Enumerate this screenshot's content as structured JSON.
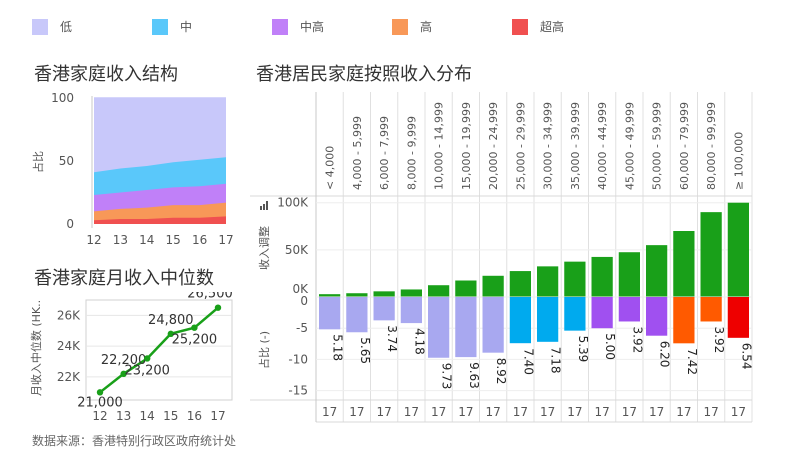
{
  "legend": {
    "items": [
      {
        "label": "低",
        "color": "#c8c8fa"
      },
      {
        "label": "中",
        "color": "#5ac8fa"
      },
      {
        "label": "中高",
        "color": "#c080f8"
      },
      {
        "label": "高",
        "color": "#f89858"
      },
      {
        "label": "超高",
        "color": "#f05050"
      }
    ]
  },
  "source_note": "数据来源：香港特别行政区政府统计处",
  "chart_data": [
    {
      "type": "area",
      "title": "香港家庭收入结构",
      "ylabel": "占比",
      "x": [
        "12",
        "13",
        "14",
        "15",
        "16",
        "17"
      ],
      "yticks": [
        "0",
        "50",
        "100"
      ],
      "ylim": [
        0,
        100
      ],
      "series": [
        {
          "name": "超高",
          "values": [
            3,
            4,
            4,
            5,
            5,
            6
          ]
        },
        {
          "name": "高",
          "values": [
            7,
            8,
            9,
            10,
            10,
            11
          ]
        },
        {
          "name": "中高",
          "values": [
            13,
            13,
            14,
            14,
            15,
            15
          ]
        },
        {
          "name": "中",
          "values": [
            18,
            19,
            19,
            20,
            21,
            21
          ]
        },
        {
          "name": "低",
          "values": [
            59,
            56,
            54,
            51,
            49,
            47
          ]
        }
      ]
    },
    {
      "type": "line",
      "title": "香港家庭月收入中位数",
      "ylabel": "月收入中位数 (HK..",
      "x": [
        "12",
        "13",
        "14",
        "15",
        "16",
        "17"
      ],
      "values": [
        21000,
        22200,
        23200,
        24800,
        25200,
        26500
      ],
      "data_labels": [
        "21,000",
        "22,200",
        "23,200",
        "24,800",
        "25,200",
        "26,500"
      ],
      "yticks": [
        {
          "value": 22000,
          "label": "22K"
        },
        {
          "value": 24000,
          "label": "24K"
        },
        {
          "value": 26000,
          "label": "26K"
        }
      ],
      "ylim": [
        20500,
        27000
      ],
      "color": "#19a019"
    },
    {
      "type": "bar",
      "title": "香港居民家庭按照收入分布",
      "categories": [
        "< 4,000",
        "4,000 - 5,999",
        "6,000 - 7,999",
        "8,000 - 9,999",
        "10,000 - 14,999",
        "15,000 - 19,999",
        "20,000 - 24,999",
        "25,000 - 29,999",
        "30,000 - 34,999",
        "35,000 - 39,999",
        "40,000 - 44,999",
        "45,000 - 49,999",
        "50,000 - 59,999",
        "60,000 - 79,999",
        "80,000 - 99,999",
        "≥ 100,000"
      ],
      "upper": {
        "ylabel": "收入调整",
        "yticks": [
          {
            "value": 0,
            "label": "0K"
          },
          {
            "value": 50000,
            "label": "50K"
          },
          {
            "value": 100000,
            "label": "100K"
          }
        ],
        "ylim": [
          0,
          105000
        ],
        "values": [
          3000,
          4000,
          6000,
          8000,
          12500,
          17500,
          22500,
          27500,
          32500,
          37500,
          42500,
          47500,
          55000,
          70000,
          90000,
          100000
        ],
        "color": "#19a019"
      },
      "lower": {
        "ylabel": "占比 (-)",
        "yticks": [
          {
            "value": 0,
            "label": "0"
          },
          {
            "value": -5,
            "label": "-5"
          },
          {
            "value": -10,
            "label": "-10"
          },
          {
            "value": -15,
            "label": "-15"
          }
        ],
        "ylim": [
          -16.5,
          0
        ],
        "values": [
          5.18,
          5.65,
          3.74,
          4.18,
          9.73,
          9.63,
          8.92,
          7.4,
          7.18,
          5.39,
          5.0,
          3.92,
          6.2,
          7.42,
          3.92,
          6.54
        ],
        "labels": [
          "5.18",
          "5.65",
          "3.74",
          "4.18",
          "9.73",
          "9.63",
          "8.92",
          "7.40",
          "7.18",
          "5.39",
          "5.00",
          "3.92",
          "6.20",
          "7.42",
          "3.92",
          "6.54"
        ],
        "colors": [
          "#a8a8f0",
          "#a8a8f0",
          "#a8a8f0",
          "#a8a8f0",
          "#a8a8f0",
          "#a8a8f0",
          "#a8a8f0",
          "#00aaee",
          "#00aaee",
          "#00aaee",
          "#a050f0",
          "#a050f0",
          "#a050f0",
          "#ff5a00",
          "#ff5a00",
          "#ee0000"
        ]
      },
      "year_label": "17"
    }
  ]
}
